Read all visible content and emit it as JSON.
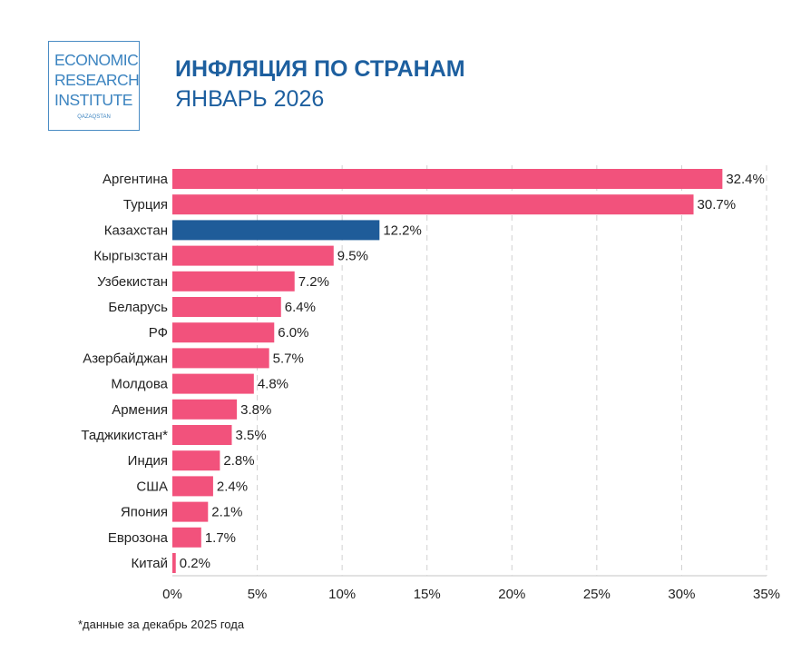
{
  "logo": {
    "lines": [
      "ECONOMIC",
      "RESEARCH",
      "INSTITUTE"
    ],
    "sub": "QAZAQSTAN"
  },
  "chart_data": {
    "type": "bar",
    "orientation": "horizontal",
    "title": "ИНФЛЯЦИЯ ПО СТРАНАМ",
    "subtitle": "ЯНВАРЬ 2026",
    "categories": [
      "Аргентина",
      "Турция",
      "Казахстан",
      "Кыргызстан",
      "Узбекистан",
      "Беларусь",
      "РФ",
      "Азербайджан",
      "Молдова",
      "Армения",
      "Таджикистан*",
      "Индия",
      "США",
      "Япония",
      "Еврозона",
      "Китай"
    ],
    "values": [
      32.4,
      30.7,
      12.2,
      9.5,
      7.2,
      6.4,
      6.0,
      5.7,
      4.8,
      3.8,
      3.5,
      2.8,
      2.4,
      2.1,
      1.7,
      0.2
    ],
    "data_labels": [
      "32.4%",
      "30.7%",
      "12.2%",
      "9.5%",
      "7.2%",
      "6.4%",
      "6.0%",
      "5.7%",
      "4.8%",
      "3.8%",
      "3.5%",
      "2.8%",
      "2.4%",
      "2.1%",
      "1.7%",
      "0.2%"
    ],
    "highlight": "Казахстан",
    "xlim": [
      0,
      35
    ],
    "xticks": [
      0,
      5,
      10,
      15,
      20,
      25,
      30,
      35
    ],
    "xtick_labels": [
      "0%",
      "5%",
      "10%",
      "15%",
      "20%",
      "25%",
      "30%",
      "35%"
    ],
    "grid": "vertical dashed",
    "colors": {
      "default": "#f2527c",
      "highlight": "#1f5c99"
    },
    "footnote": "*данные за декабрь 2025 года"
  }
}
